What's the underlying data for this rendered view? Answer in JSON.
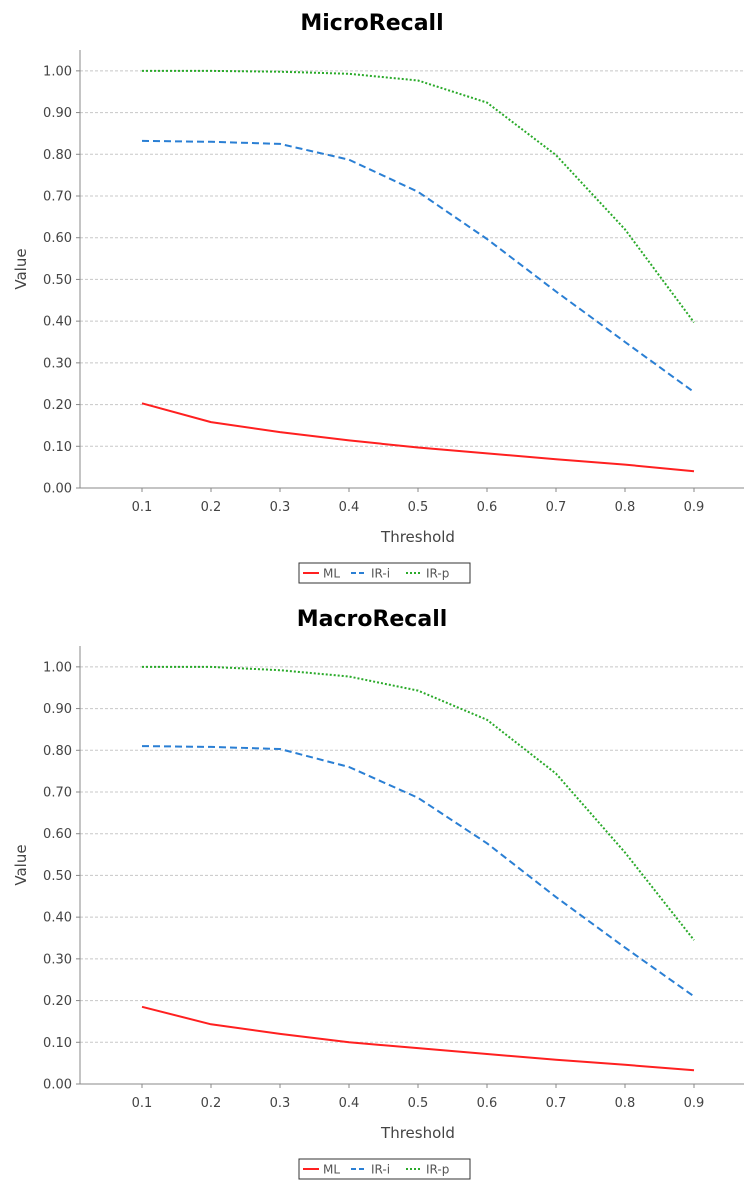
{
  "chart_data": [
    {
      "type": "line",
      "title": "MicroRecall",
      "xlabel": "Threshold",
      "ylabel": "Value",
      "x": [
        0.1,
        0.2,
        0.3,
        0.4,
        0.5,
        0.6,
        0.7,
        0.8,
        0.9
      ],
      "x_tick_labels": [
        "0.1",
        "0.2",
        "0.3",
        "0.4",
        "0.5",
        "0.6",
        "0.7",
        "0.8",
        "0.9"
      ],
      "ylim": [
        0,
        1.05
      ],
      "y_ticks": [
        0,
        0.1,
        0.2,
        0.3,
        0.4,
        0.5,
        0.6,
        0.7,
        0.8,
        0.9,
        1.0
      ],
      "y_tick_labels": [
        "0.00",
        "0.10",
        "0.20",
        "0.30",
        "0.40",
        "0.50",
        "0.60",
        "0.70",
        "0.80",
        "0.90",
        "1.00"
      ],
      "grid": "horizontal",
      "legend_position": "bottom",
      "series": [
        {
          "name": "ML",
          "color": "#ff2020",
          "style": "solid",
          "values": [
            0.203,
            0.158,
            0.134,
            0.114,
            0.097,
            0.083,
            0.069,
            0.056,
            0.04
          ]
        },
        {
          "name": "IR-i",
          "color": "#2a7fd4",
          "style": "dashed",
          "values": [
            0.832,
            0.83,
            0.825,
            0.787,
            0.71,
            0.597,
            0.471,
            0.35,
            0.23
          ]
        },
        {
          "name": "IR-p",
          "color": "#2aaa2a",
          "style": "dotted",
          "values": [
            1.0,
            1.0,
            0.998,
            0.993,
            0.977,
            0.924,
            0.798,
            0.62,
            0.397
          ]
        }
      ]
    },
    {
      "type": "line",
      "title": "MacroRecall",
      "xlabel": "Threshold",
      "ylabel": "Value",
      "x": [
        0.1,
        0.2,
        0.3,
        0.4,
        0.5,
        0.6,
        0.7,
        0.8,
        0.9
      ],
      "x_tick_labels": [
        "0.1",
        "0.2",
        "0.3",
        "0.4",
        "0.5",
        "0.6",
        "0.7",
        "0.8",
        "0.9"
      ],
      "ylim": [
        0,
        1.05
      ],
      "y_ticks": [
        0,
        0.1,
        0.2,
        0.3,
        0.4,
        0.5,
        0.6,
        0.7,
        0.8,
        0.9,
        1.0
      ],
      "y_tick_labels": [
        "0.00",
        "0.10",
        "0.20",
        "0.30",
        "0.40",
        "0.50",
        "0.60",
        "0.70",
        "0.80",
        "0.90",
        "1.00"
      ],
      "grid": "horizontal",
      "legend_position": "bottom",
      "series": [
        {
          "name": "ML",
          "color": "#ff2020",
          "style": "solid",
          "values": [
            0.185,
            0.143,
            0.12,
            0.1,
            0.086,
            0.072,
            0.058,
            0.046,
            0.033
          ]
        },
        {
          "name": "IR-i",
          "color": "#2a7fd4",
          "style": "dashed",
          "values": [
            0.81,
            0.808,
            0.803,
            0.76,
            0.686,
            0.577,
            0.448,
            0.327,
            0.21
          ]
        },
        {
          "name": "IR-p",
          "color": "#2aaa2a",
          "style": "dotted",
          "values": [
            1.0,
            1.0,
            0.992,
            0.977,
            0.943,
            0.873,
            0.744,
            0.555,
            0.345
          ]
        }
      ]
    }
  ]
}
